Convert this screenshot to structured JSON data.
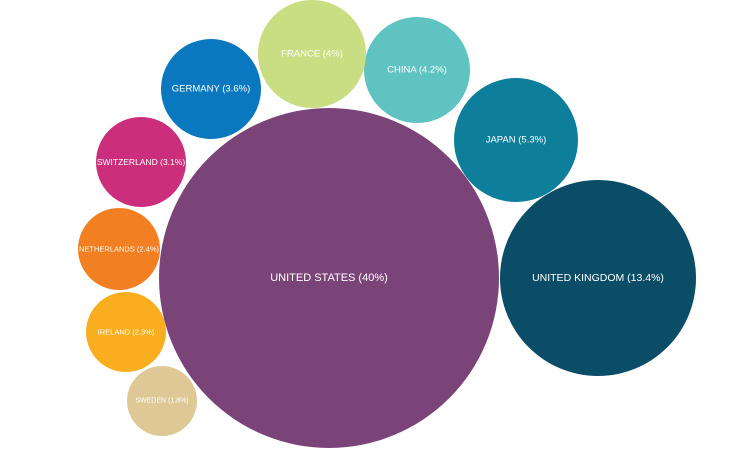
{
  "chart_data": {
    "type": "bubble",
    "title": "",
    "unit": "%",
    "items": [
      {
        "name": "UNITED STATES",
        "label": "UNITED STATES (40%)",
        "value": 40,
        "color": "#7B4479"
      },
      {
        "name": "UNITED KINGDOM",
        "label": "UNITED KINGDOM (13.4%)",
        "value": 13.4,
        "color": "#0B4D66"
      },
      {
        "name": "JAPAN",
        "label": "JAPAN (5.3%)",
        "value": 5.3,
        "color": "#0E7F9B"
      },
      {
        "name": "CHINA",
        "label": "CHINA (4.2%)",
        "value": 4.2,
        "color": "#5FC3C2"
      },
      {
        "name": "FRANCE",
        "label": "FRANCE (4%)",
        "value": 4,
        "color": "#C9DD82"
      },
      {
        "name": "GERMANY",
        "label": "GERMANY (3.6%)",
        "value": 3.6,
        "color": "#0A78BE"
      },
      {
        "name": "SWITZERLAND",
        "label": "SWITZERLAND (3.1%)",
        "value": 3.1,
        "color": "#CB2E7B"
      },
      {
        "name": "NETHERLANDS",
        "label": "NETHERLANDS (2.4%)",
        "value": 2.4,
        "color": "#F27F22"
      },
      {
        "name": "IRELAND",
        "label": "IRELAND (2.3%)",
        "value": 2.3,
        "color": "#F8AE1E"
      },
      {
        "name": "SWEDEN",
        "label": "SWEDEN (1.8%)",
        "value": 1.8,
        "color": "#DEC996"
      }
    ]
  }
}
